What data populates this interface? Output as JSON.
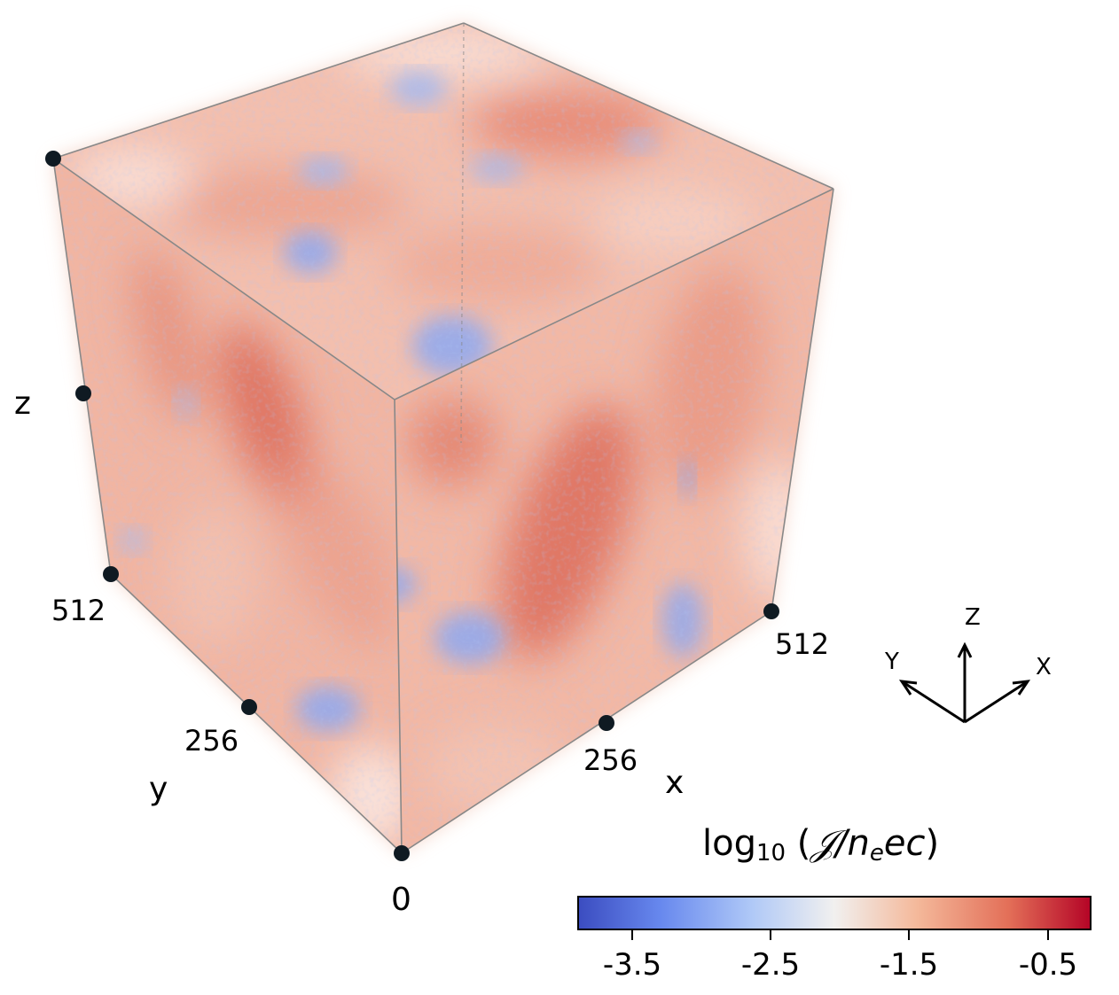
{
  "figure": {
    "axes": {
      "x_label": "x",
      "y_label": "y",
      "z_label": "z",
      "origin_label": "0",
      "x_ticks": [
        "256",
        "512"
      ],
      "y_ticks": [
        "256",
        "512"
      ]
    },
    "orientation_triad": {
      "x": "X",
      "y": "Y",
      "z": "Z"
    },
    "colorbar": {
      "title_prefix": "log",
      "title_sub": "10",
      "title_open": " (",
      "title_expr": "𝒥/n",
      "title_expr_sub": "e",
      "title_expr_end": "ec",
      "title_close": ")",
      "ticks": [
        "-3.5",
        "-2.5",
        "-1.5",
        "-0.5"
      ],
      "tick_values": [
        -3.5,
        -2.5,
        -1.5,
        -0.5
      ],
      "range": [
        -4.0,
        -0.2
      ],
      "colormap": [
        "#3b4cc0",
        "#6788ee",
        "#b0c9f7",
        "#f1f0ef",
        "#f4b99b",
        "#e36f58",
        "#b40426"
      ]
    },
    "colors": {
      "volume_base": "#f2b7a1",
      "volume_light": "#f8d8cc",
      "volume_dark": "#d85a48",
      "low_patches": "#7f9ef0"
    }
  }
}
